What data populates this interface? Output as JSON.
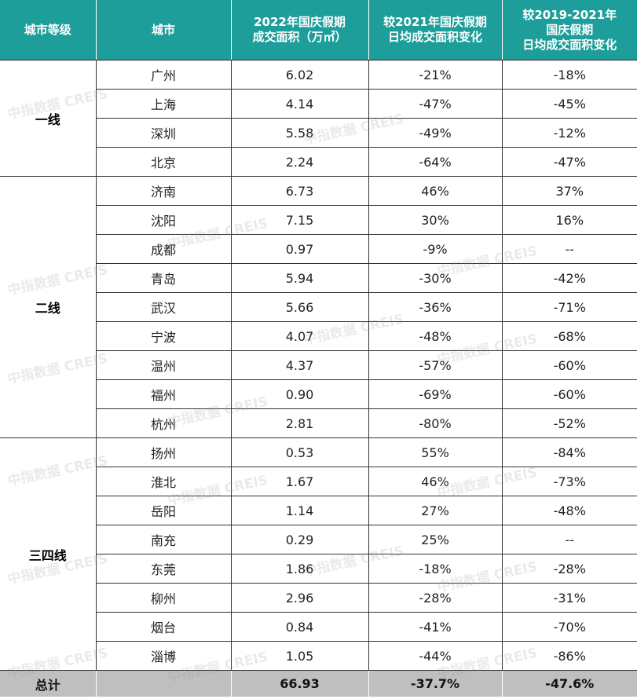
{
  "headers": {
    "tier": "城市等级",
    "city": "城市",
    "area_line1": "2022年国庆假期",
    "area_line2": "成交面积（万㎡）",
    "yoy_line1": "较2021年国庆假期",
    "yoy_line2": "日均成交面积变化",
    "vs_line1": "较2019-2021年",
    "vs_line2": "国庆假期",
    "vs_line3": "日均成交面积变化"
  },
  "tiers": [
    {
      "name": "一线",
      "rows": [
        {
          "city": "广州",
          "area": "6.02",
          "yoy": "-21%",
          "vs": "-18%"
        },
        {
          "city": "上海",
          "area": "4.14",
          "yoy": "-47%",
          "vs": "-45%"
        },
        {
          "city": "深圳",
          "area": "5.58",
          "yoy": "-49%",
          "vs": "-12%"
        },
        {
          "city": "北京",
          "area": "2.24",
          "yoy": "-64%",
          "vs": "-47%"
        }
      ]
    },
    {
      "name": "二线",
      "rows": [
        {
          "city": "济南",
          "area": "6.73",
          "yoy": "46%",
          "vs": "37%"
        },
        {
          "city": "沈阳",
          "area": "7.15",
          "yoy": "30%",
          "vs": "16%"
        },
        {
          "city": "成都",
          "area": "0.97",
          "yoy": "-9%",
          "vs": "--"
        },
        {
          "city": "青岛",
          "area": "5.94",
          "yoy": "-30%",
          "vs": "-42%"
        },
        {
          "city": "武汉",
          "area": "5.66",
          "yoy": "-36%",
          "vs": "-71%"
        },
        {
          "city": "宁波",
          "area": "4.07",
          "yoy": "-48%",
          "vs": "-68%"
        },
        {
          "city": "温州",
          "area": "4.37",
          "yoy": "-57%",
          "vs": "-60%"
        },
        {
          "city": "福州",
          "area": "0.90",
          "yoy": "-69%",
          "vs": "-60%"
        },
        {
          "city": "杭州",
          "area": "2.81",
          "yoy": "-80%",
          "vs": "-52%"
        }
      ]
    },
    {
      "name": "三四线",
      "rows": [
        {
          "city": "扬州",
          "area": "0.53",
          "yoy": "55%",
          "vs": "-84%"
        },
        {
          "city": "淮北",
          "area": "1.67",
          "yoy": "46%",
          "vs": "-73%"
        },
        {
          "city": "岳阳",
          "area": "1.14",
          "yoy": "27%",
          "vs": "-48%"
        },
        {
          "city": "南充",
          "area": "0.29",
          "yoy": "25%",
          "vs": "--"
        },
        {
          "city": "东莞",
          "area": "1.86",
          "yoy": "-18%",
          "vs": "-28%"
        },
        {
          "city": "柳州",
          "area": "2.96",
          "yoy": "-28%",
          "vs": "-31%"
        },
        {
          "city": "烟台",
          "area": "0.84",
          "yoy": "-41%",
          "vs": "-70%"
        },
        {
          "city": "淄博",
          "area": "1.05",
          "yoy": "-44%",
          "vs": "-86%"
        }
      ]
    }
  ],
  "total": {
    "label": "总计",
    "area": "66.93",
    "yoy": "-37.7%",
    "vs": "-47.6%"
  },
  "watermark": "中指数据 CREIS",
  "colors": {
    "header_bg": "#1e9e9a",
    "total_bg": "#bfbfbf"
  }
}
